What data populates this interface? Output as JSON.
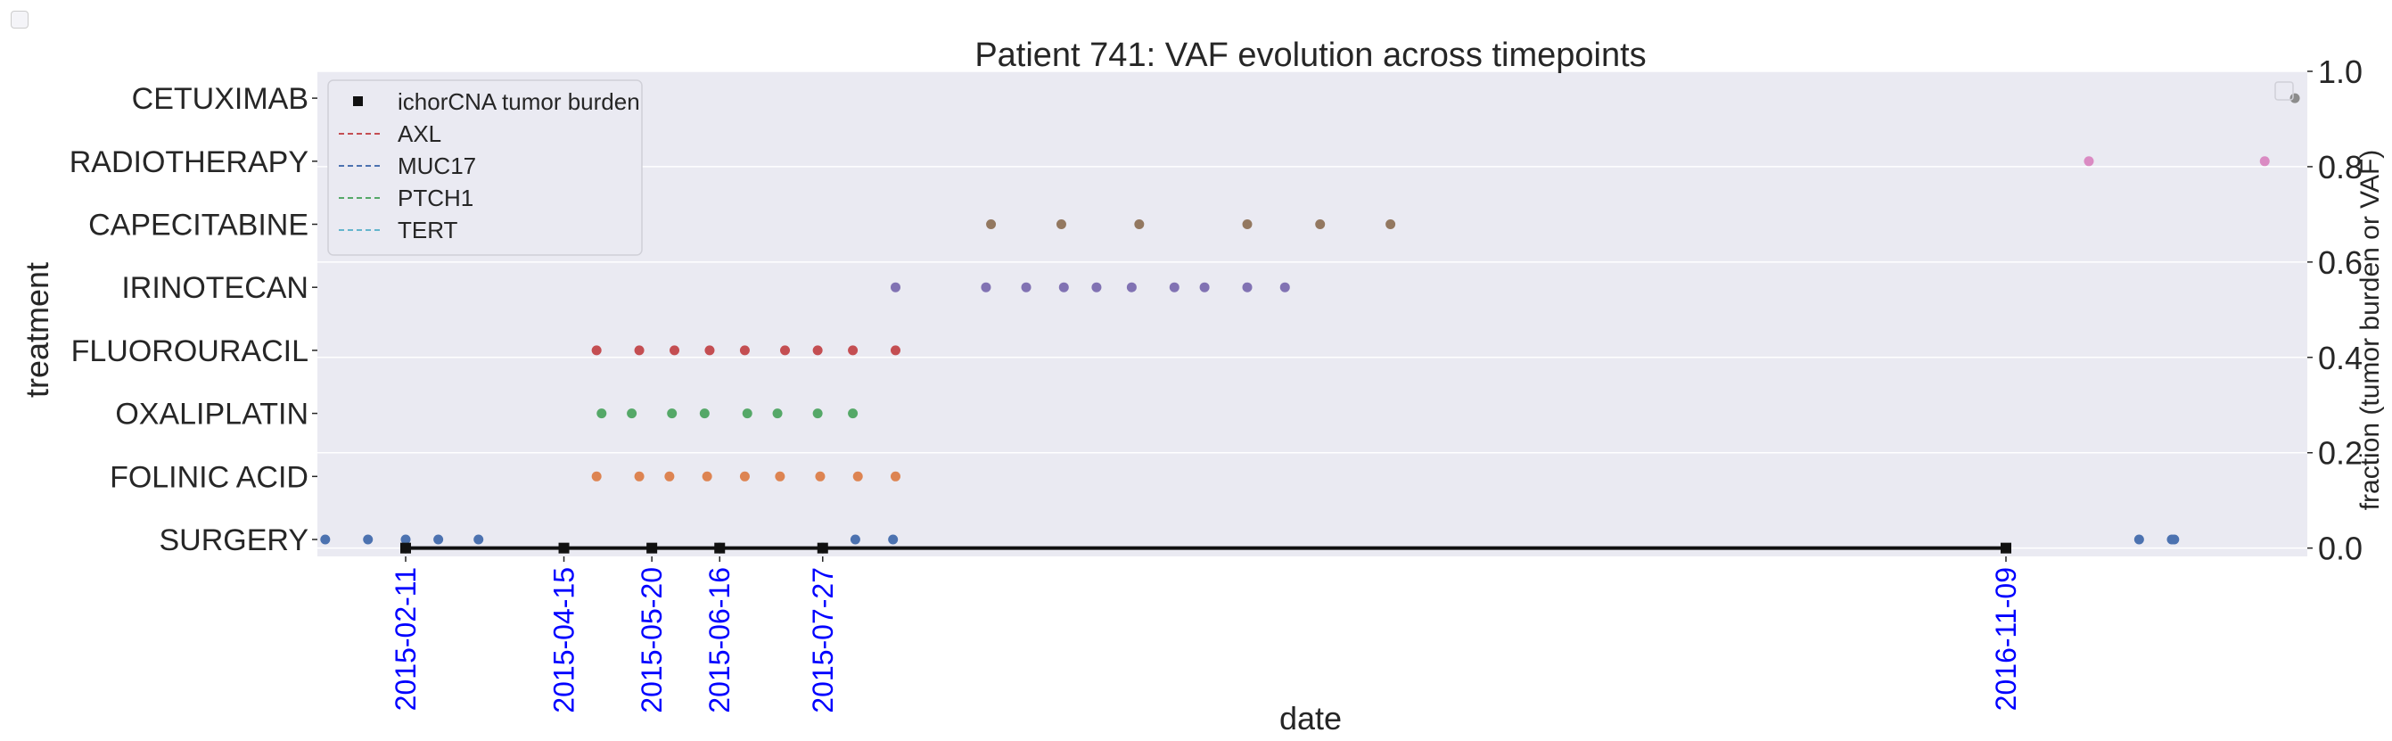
{
  "chart_data": {
    "type": "scatter",
    "title": "Patient 741: VAF evolution across timepoints",
    "xlabel": "date",
    "ylabel_left": "treatment",
    "ylabel_right": "fraction (tumor burden or VAF)",
    "x_range": [
      "2015-01-10",
      "2017-02-25"
    ],
    "y_right_range": [
      -0.01,
      1.0
    ],
    "right_ticks": [
      "0.0",
      "0.2",
      "0.4",
      "0.6",
      "0.8",
      "1.0"
    ],
    "grid": true,
    "legend_placement": "upper left",
    "treatments": [
      "SURGERY",
      "FOLINIC ACID",
      "OXALIPLATIN",
      "FLUOROURACIL",
      "IRINOTECAN",
      "CAPECITABINE",
      "RADIOTHERAPY",
      "CETUXIMAB"
    ],
    "treatment_colors": {
      "SURGERY": "#4c72b0",
      "FOLINIC ACID": "#dd8452",
      "OXALIPLATIN": "#55a868",
      "FLUOROURACIL": "#c44e52",
      "IRINOTECAN": "#8172b3",
      "CAPECITABINE": "#937860",
      "RADIOTHERAPY": "#da8bc3",
      "CETUXIMAB": "#8c8c8c"
    },
    "treatment_events": [
      {
        "treatment": "SURGERY",
        "dates": [
          "2015-01-10",
          "2015-01-27",
          "2015-02-11",
          "2015-02-24",
          "2015-03-12",
          "2015-08-09",
          "2015-08-24",
          "2017-01-01",
          "2017-01-14",
          "2017-01-15"
        ]
      },
      {
        "treatment": "FOLINIC ACID",
        "dates": [
          "2015-04-28",
          "2015-05-15",
          "2015-05-27",
          "2015-06-11",
          "2015-06-26",
          "2015-07-10",
          "2015-07-26",
          "2015-08-10",
          "2015-08-25"
        ]
      },
      {
        "treatment": "OXALIPLATIN",
        "dates": [
          "2015-04-30",
          "2015-05-12",
          "2015-05-28",
          "2015-06-10",
          "2015-06-27",
          "2015-07-09",
          "2015-07-25",
          "2015-08-08"
        ]
      },
      {
        "treatment": "FLUOROURACIL",
        "dates": [
          "2015-04-28",
          "2015-05-15",
          "2015-05-29",
          "2015-06-12",
          "2015-06-26",
          "2015-07-12",
          "2015-07-25",
          "2015-08-08",
          "2015-08-25"
        ]
      },
      {
        "treatment": "IRINOTECAN",
        "dates": [
          "2015-08-25",
          "2015-09-30",
          "2015-10-16",
          "2015-10-31",
          "2015-11-13",
          "2015-11-27",
          "2015-12-14",
          "2015-12-26",
          "2016-01-12",
          "2016-01-27"
        ]
      },
      {
        "treatment": "CAPECITABINE",
        "dates": [
          "2015-10-02",
          "2015-10-30",
          "2015-11-30",
          "2016-01-12",
          "2016-02-10",
          "2016-03-09"
        ]
      },
      {
        "treatment": "RADIOTHERAPY",
        "dates": [
          "2016-12-12",
          "2017-02-20"
        ]
      },
      {
        "treatment": "CETUXIMAB",
        "dates": [
          "2017-03-04"
        ]
      }
    ],
    "timepoints": [
      "2015-02-11",
      "2015-04-15",
      "2015-05-20",
      "2015-06-16",
      "2015-07-27",
      "2016-11-09"
    ],
    "series": [
      {
        "name": "ichorCNA tumor burden",
        "style": "square",
        "color": "#111111",
        "x": [
          "2015-02-11",
          "2015-04-15",
          "2015-05-20",
          "2015-06-16",
          "2015-07-27",
          "2016-11-09"
        ],
        "values": [
          0.0,
          0.0,
          0.0,
          0.0,
          0.0,
          0.0
        ]
      },
      {
        "name": "AXL",
        "style": "dashed",
        "color": "#c44e52",
        "x": [
          "2015-02-11",
          "2015-06-16",
          "2015-07-27"
        ],
        "values": [
          0.0,
          0.0,
          0.0
        ]
      },
      {
        "name": "MUC17",
        "style": "dashed",
        "color": "#4c72b0",
        "x": [
          "2015-02-11",
          "2015-06-16",
          "2015-07-27"
        ],
        "values": [
          0.0,
          0.0,
          0.0
        ]
      },
      {
        "name": "PTCH1",
        "style": "dashed",
        "color": "#55a868",
        "x": [
          "2015-02-11",
          "2015-06-16",
          "2015-07-27"
        ],
        "values": [
          0.0,
          0.0,
          0.0
        ]
      },
      {
        "name": "TERT",
        "style": "dashed",
        "color": "#64b5cd",
        "x": [
          "2015-02-11",
          "2015-06-16",
          "2015-07-27"
        ],
        "values": [
          0.0,
          0.0,
          0.0
        ]
      }
    ],
    "colors": {
      "plot_background": "#eaeaf2",
      "grid": "#ffffff",
      "timepoint_label": "#0000ff",
      "text": "#262626"
    }
  }
}
